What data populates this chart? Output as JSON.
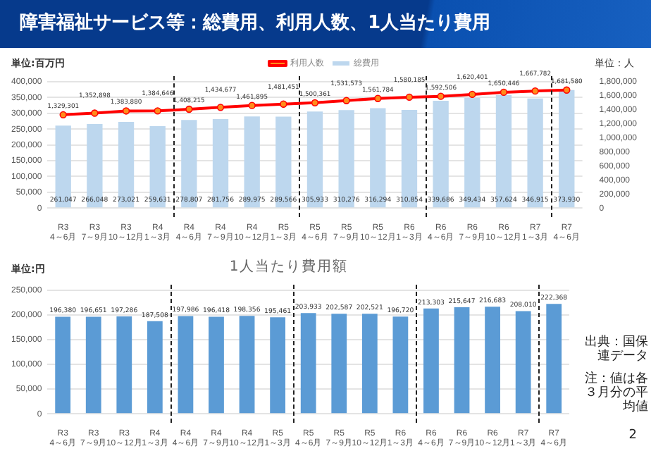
{
  "chart_data": [
    {
      "type": "bar",
      "title": "障害福祉サービス等：総費用、利用人数、1人当たり費用",
      "ylabel": "単位:百万円",
      "y2label": "単位：人",
      "categories": [
        "R3 4～6月",
        "R3 7～9月",
        "R3 10～12月",
        "R4 1～3月",
        "R4 4～6月",
        "R4 7～9月",
        "R4 10～12月",
        "R5 1～3月",
        "R5 4～6月",
        "R5 7～9月",
        "R5 10～12月",
        "R6 1～3月",
        "R6 4～6月",
        "R6 7～9月",
        "R6 10～12月",
        "R7 1～3月",
        "R7 4～6月"
      ],
      "series": [
        {
          "name": "総費用",
          "color": "#bdd7ee",
          "values": [
            261047,
            266048,
            273021,
            259631,
            278807,
            281756,
            289975,
            289566,
            305933,
            310276,
            316294,
            310854,
            339686,
            349434,
            357624,
            346915,
            373930
          ],
          "value_labels": [
            "261,047",
            "266,048",
            "273,021",
            "259,631",
            "278,807",
            "281,756",
            "289,975",
            "289,566",
            "305,933",
            "310,276",
            "316,294",
            "310,854",
            "339,686",
            "349,434",
            "357,624",
            "346,915",
            "373,930"
          ]
        },
        {
          "name": "利用人数",
          "type": "line",
          "axis": "y2",
          "color": "#ff0000",
          "marker": "circle",
          "values": [
            1329301,
            1352898,
            1383880,
            1384646,
            1408215,
            1434677,
            1461895,
            1481451,
            1500361,
            1531573,
            1561784,
            1580185,
            1592506,
            1620401,
            1650446,
            1667782,
            1681580
          ],
          "value_labels": [
            "1,329,301",
            "1,352,898",
            "1,383,880",
            "1,384,646",
            "1,408,215",
            "1,434,677",
            "1,461,895",
            "1,481,451",
            "1,500,361",
            "1,531,573",
            "1,561,784",
            "1,580,185",
            "1,592,506",
            "1,620,401",
            "1,650,446",
            "1,667,782",
            "1,681,580"
          ]
        }
      ],
      "ylim": [
        0,
        400000
      ],
      "yticks": [
        {
          "value": 0,
          "label": "0"
        },
        {
          "value": 50000,
          "label": "50,000"
        },
        {
          "value": 100000,
          "label": "100,000"
        },
        {
          "value": 150000,
          "label": "150,000"
        },
        {
          "value": 200000,
          "label": "200,000"
        },
        {
          "value": 250000,
          "label": "250,000"
        },
        {
          "value": 300000,
          "label": "300,000"
        },
        {
          "value": 350000,
          "label": "350,000"
        },
        {
          "value": 400000,
          "label": "400,000"
        }
      ],
      "y2lim": [
        0,
        1800000
      ],
      "y2ticks": [
        {
          "value": 0,
          "label": "0"
        },
        {
          "value": 200000,
          "label": "200,000"
        },
        {
          "value": 400000,
          "label": "400,000"
        },
        {
          "value": 600000,
          "label": "600,000"
        },
        {
          "value": 800000,
          "label": "800,000"
        },
        {
          "value": 1000000,
          "label": "1,000,000"
        },
        {
          "value": 1200000,
          "label": "1,200,000"
        },
        {
          "value": 1400000,
          "label": "1,400,000"
        },
        {
          "value": 1600000,
          "label": "1,600,000"
        },
        {
          "value": 1800000,
          "label": "1,800,000"
        }
      ],
      "grid": "y",
      "legend": "top"
    },
    {
      "type": "bar",
      "title": "1人当たり費用額",
      "ylabel": "単位:円",
      "categories": [
        "R3 4～6月",
        "R3 7～9月",
        "R3 10～12月",
        "R4 1～3月",
        "R4 4～6月",
        "R4 7～9月",
        "R4 10～12月",
        "R5 1～3月",
        "R5 4～6月",
        "R5 7～9月",
        "R5 10～12月",
        "R6 1～3月",
        "R6 4～6月",
        "R6 7～9月",
        "R6 10～12月",
        "R7 1～3月",
        "R7 4～6月"
      ],
      "values": [
        196380,
        196651,
        197286,
        187508,
        197986,
        196418,
        198356,
        195461,
        203933,
        202587,
        202521,
        196720,
        213303,
        215647,
        216683,
        208010,
        222368
      ],
      "value_labels": [
        "196,380",
        "196,651",
        "197,286",
        "187,508",
        "197,986",
        "196,418",
        "198,356",
        "195,461",
        "203,933",
        "202,587",
        "202,521",
        "196,720",
        "213,303",
        "215,647",
        "216,683",
        "208,010",
        "222,368"
      ],
      "color": "#5b9bd5",
      "ylim": [
        0,
        250000
      ],
      "yticks": [
        {
          "value": 0,
          "label": "0"
        },
        {
          "value": 50000,
          "label": "50,000"
        },
        {
          "value": 100000,
          "label": "100,000"
        },
        {
          "value": 150000,
          "label": "150,000"
        },
        {
          "value": 200000,
          "label": "200,000"
        },
        {
          "value": 250000,
          "label": "250,000"
        }
      ],
      "grid": "y",
      "annotations": [
        "出典：国保連データ",
        "注：値は各３月分の平均値",
        "2"
      ]
    }
  ]
}
